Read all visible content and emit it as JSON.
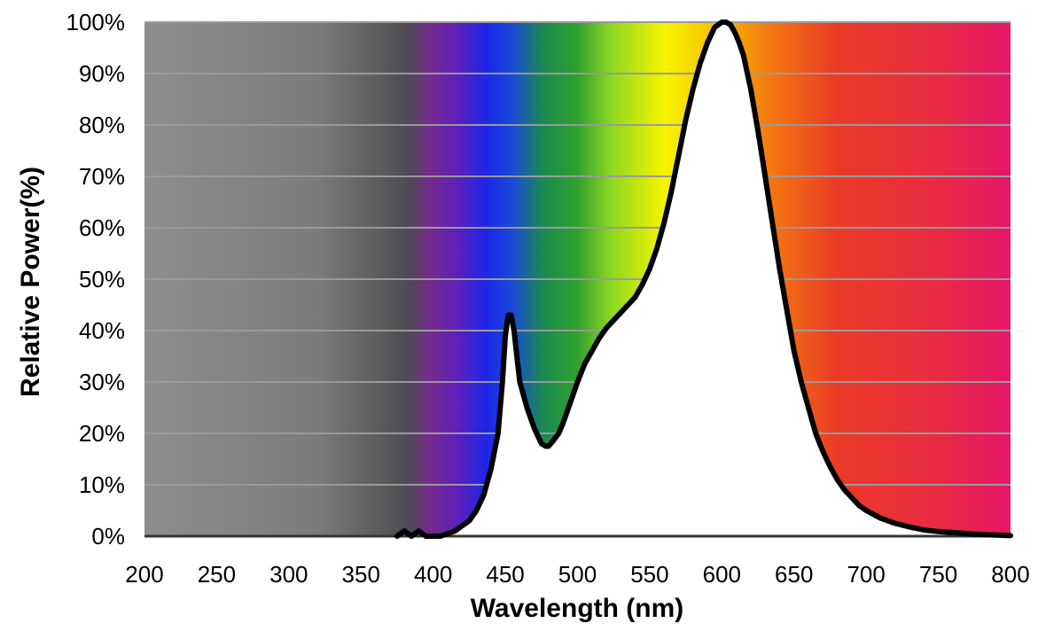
{
  "chart_data": {
    "type": "line",
    "title": "",
    "xlabel": "Wavelength (nm)",
    "ylabel": "Relative Power(%)",
    "xlim": [
      200,
      800
    ],
    "ylim": [
      0,
      100
    ],
    "x_ticks": [
      "200",
      "250",
      "300",
      "350",
      "400",
      "450",
      "500",
      "550",
      "600",
      "650",
      "700",
      "750",
      "800"
    ],
    "y_ticks": [
      "0%",
      "10%",
      "20%",
      "30%",
      "40%",
      "50%",
      "60%",
      "70%",
      "80%",
      "90%",
      "100%"
    ],
    "grid": "horizontal",
    "background": "visible spectrum gradient",
    "line_color": "#000000",
    "series": [
      {
        "x": [
          375,
          380,
          385,
          390,
          395,
          400,
          405,
          410,
          415,
          420,
          425,
          430,
          435,
          440,
          445,
          448,
          450,
          452,
          454,
          456,
          458,
          460,
          465,
          470,
          475,
          478,
          480,
          483,
          487,
          490,
          495,
          500,
          505,
          510,
          515,
          520,
          525,
          530,
          535,
          540,
          545,
          550,
          555,
          560,
          565,
          570,
          575,
          580,
          585,
          590,
          595,
          600,
          603,
          606,
          609,
          612,
          615,
          620,
          625,
          630,
          635,
          640,
          645,
          650,
          655,
          660,
          665,
          670,
          675,
          680,
          685,
          690,
          695,
          700,
          710,
          720,
          730,
          740,
          750,
          760,
          770,
          780,
          790,
          800
        ],
        "y": [
          0,
          1,
          0,
          1,
          0,
          0,
          0,
          0.5,
          1,
          2,
          3,
          5,
          8,
          13,
          20,
          30,
          39,
          43,
          43,
          40,
          35,
          30,
          25,
          21,
          18,
          17.5,
          17.5,
          18.5,
          20,
          22,
          26,
          30,
          33.5,
          36,
          38.5,
          40.5,
          42,
          43.5,
          45,
          46.5,
          49,
          52,
          56,
          61,
          67,
          74,
          81,
          87,
          92,
          96,
          99,
          100,
          100,
          99.5,
          98,
          96,
          93.5,
          87,
          79,
          70,
          61,
          52,
          44,
          36,
          30,
          25,
          20,
          16.5,
          13.5,
          11,
          9,
          7.5,
          6,
          5,
          3.5,
          2.5,
          1.8,
          1.2,
          0.9,
          0.7,
          0.5,
          0.3,
          0.2,
          0.1
        ]
      }
    ]
  }
}
